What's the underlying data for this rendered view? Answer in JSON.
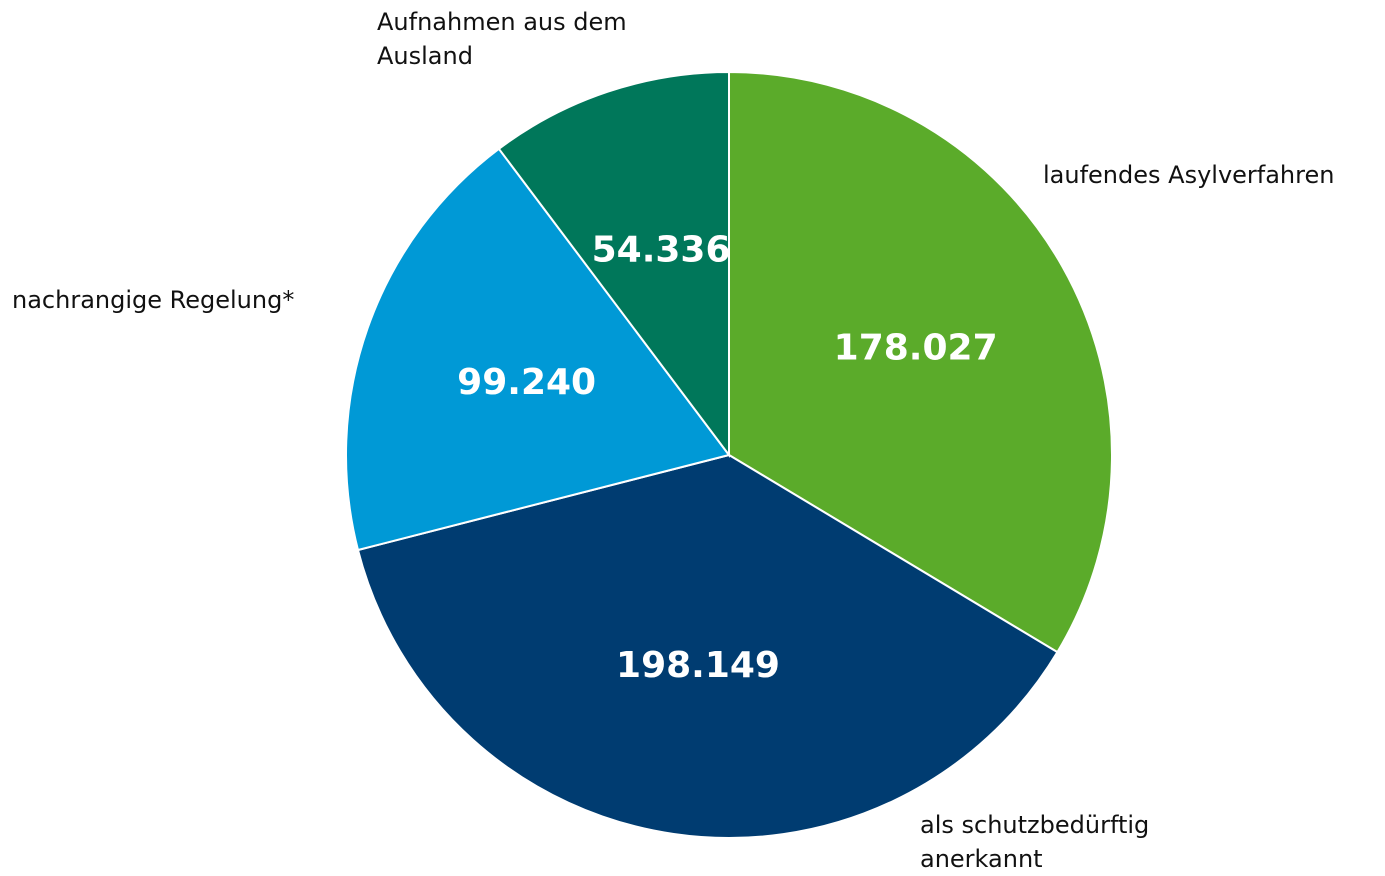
{
  "chart_data": {
    "type": "pie",
    "categories": [
      "laufendes Asylverfahren",
      "als schutzbedürftig anerkannt",
      "nachrangige Regelung*",
      "Aufnahmen aus dem Ausland"
    ],
    "values": [
      178027,
      198149,
      99240,
      54336
    ],
    "value_labels": [
      "178.027",
      "198.149",
      "99.240",
      "54.336"
    ],
    "colors": [
      "#5bab2a",
      "#003c71",
      "#0099d6",
      "#00775a"
    ]
  }
}
